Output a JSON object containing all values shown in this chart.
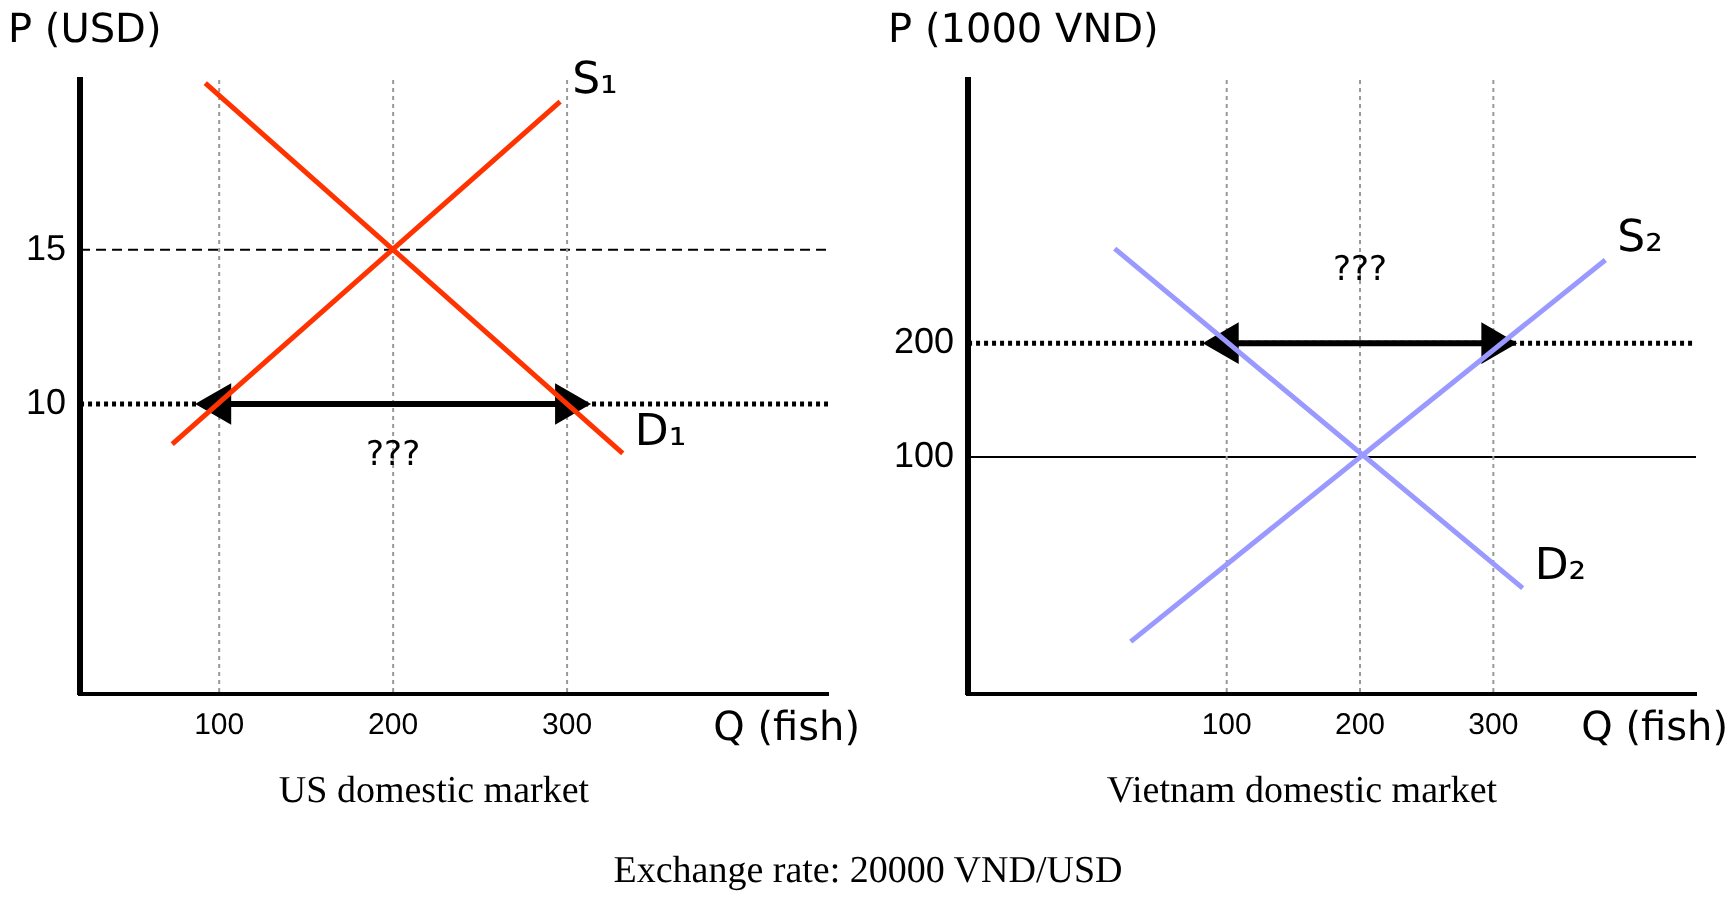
{
  "chart_data": [
    {
      "type": "line",
      "ylabel": "P (USD)",
      "xlabel": "Q (fish)",
      "xlim": [
        20,
        450
      ],
      "ylim": [
        0.6,
        20.5
      ],
      "xticks": [
        100,
        200,
        300
      ],
      "yticks": [
        10,
        15
      ],
      "grid": false,
      "legend": false,
      "marker": "none",
      "series": [
        {
          "name": "S₁",
          "color": "#ff3300",
          "x": [
            73,
            296
          ],
          "values": [
            8.7,
            19.8
          ]
        },
        {
          "name": "D₁",
          "color": "#ff3300",
          "x": [
            92,
            332
          ],
          "values": [
            20.4,
            8.4
          ]
        },
        {
          "type": "line",
          "color": "#000000",
          "marker": "triangle",
          "x": [
            100,
            300
          ],
          "values": [
            10,
            10
          ]
        }
      ],
      "ref_lines": [
        {
          "axis": "y",
          "value": 15,
          "line_style": "dashed",
          "color": "#000000"
        },
        {
          "axis": "y",
          "value": 10,
          "line_style": "dotted",
          "color": "#000000"
        },
        {
          "axis": "x",
          "value": 100,
          "line_style": "dotted",
          "color": "#999999"
        },
        {
          "axis": "x",
          "value": 200,
          "line_style": "dotted",
          "color": "#999999"
        },
        {
          "axis": "x",
          "value": 300,
          "line_style": "dotted",
          "color": "#999999"
        }
      ],
      "annotations": [
        "US domestic market",
        {
          "text": "???",
          "x": 200,
          "y": 8.3
        }
      ]
    },
    {
      "type": "line",
      "ylabel": "P (1000 VND)",
      "xlabel": "Q (fish)",
      "xlim": [
        -94,
        452
      ],
      "ylim": [
        -108,
        431
      ],
      "xticks": [
        100,
        200,
        300
      ],
      "yticks": [
        100,
        200
      ],
      "grid": false,
      "legend": false,
      "marker": "none",
      "series": [
        {
          "name": "S₂",
          "color": "#9999ff",
          "x": [
            28,
            384
          ],
          "values": [
            -62,
            273
          ]
        },
        {
          "name": "D₂",
          "color": "#9999ff",
          "x": [
            16,
            322
          ],
          "values": [
            283,
            -15
          ]
        },
        {
          "type": "line",
          "color": "#000000",
          "marker": "triangle",
          "x": [
            100,
            300
          ],
          "values": [
            200,
            200
          ]
        }
      ],
      "ref_lines": [
        {
          "axis": "y",
          "value": 200,
          "line_style": "dotted",
          "color": "#000000"
        },
        {
          "axis": "y",
          "value": 100,
          "line_style": "solid",
          "color": "#000000"
        },
        {
          "axis": "x",
          "value": 100,
          "line_style": "dotted",
          "color": "#999999"
        },
        {
          "axis": "x",
          "value": 200,
          "line_style": "dotted",
          "color": "#999999"
        },
        {
          "axis": "x",
          "value": 300,
          "line_style": "dotted",
          "color": "#999999"
        }
      ],
      "annotations": [
        "Vietnam domestic market",
        {
          "text": "???",
          "x": 200,
          "y": 263
        },
        "Exchange rate: 20000 VND/USD"
      ]
    }
  ]
}
